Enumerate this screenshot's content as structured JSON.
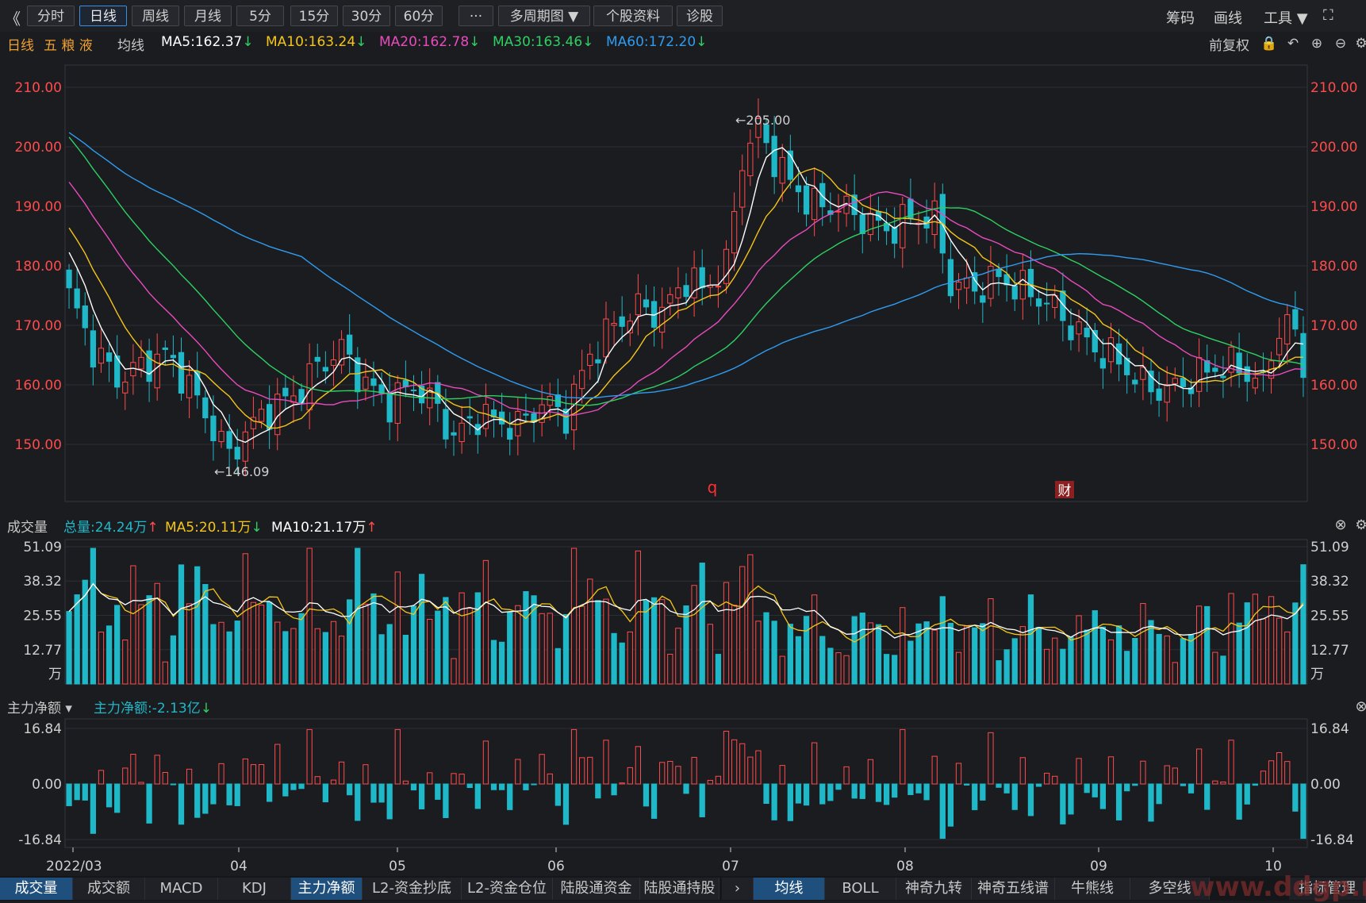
{
  "toolbar": {
    "back": "《",
    "buttons": [
      "分时",
      "日线",
      "周线",
      "月线",
      "5分",
      "15分",
      "30分",
      "60分",
      "···",
      "多周期图 ▼",
      "个股资料",
      "诊股"
    ],
    "active": 1,
    "right": [
      "筹码",
      "画线",
      "工具 ▼",
      "⛶"
    ]
  },
  "header": {
    "period": "日线",
    "stock_name": "五 粮 液",
    "ma_title": "均线",
    "ma": [
      {
        "label": "MA5:162.37",
        "arrow": "↓",
        "color": "#ffffff"
      },
      {
        "label": "MA10:163.24",
        "arrow": "↓",
        "color": "#f5c518"
      },
      {
        "label": "MA20:162.78",
        "arrow": "↓",
        "color": "#e84bbd"
      },
      {
        "label": "MA30:163.46",
        "arrow": "↓",
        "color": "#2ed062"
      },
      {
        "label": "MA60:172.20",
        "arrow": "↓",
        "color": "#2f9cf0"
      }
    ],
    "adjust": "前复权",
    "tools": [
      "lock-icon",
      "undo-icon",
      "zoom-in-icon",
      "zoom-out-icon",
      "gear-icon"
    ]
  },
  "volume_header": {
    "title": "成交量",
    "total": "总量:24.24万",
    "total_arrow": "↑",
    "ma5": "MA5:20.11万",
    "ma5_arrow": "↓",
    "ma10": "MA10:21.17万",
    "ma10_arrow": "↑"
  },
  "flow_header": {
    "title": "主力净额 ▾",
    "value": "主力净额:-2.13亿",
    "arrow": "↓"
  },
  "chart_data": [
    {
      "type": "candlestick",
      "ylim": [
        143,
        212
      ],
      "yticks": [
        "210.00",
        "200.00",
        "190.00",
        "180.00",
        "170.00",
        "160.00",
        "150.00"
      ],
      "annotations": {
        "high": "205.00",
        "low": "146.09",
        "marker_q": "q",
        "marker_cai": "财"
      },
      "x_labels": [
        "2022/03",
        "04",
        "05",
        "06",
        "07",
        "08",
        "09",
        "10"
      ],
      "colors": {
        "up": "#ff4b4b",
        "down": "#1fb8c8"
      }
    },
    {
      "type": "bar",
      "title": "成交量",
      "unit": "万",
      "ylim": [
        0,
        51.09
      ],
      "yticks": [
        "51.09",
        "38.32",
        "25.55",
        "12.77"
      ]
    },
    {
      "type": "bar",
      "title": "主力净额",
      "ylim": [
        -16.84,
        16.84
      ],
      "yticks": [
        "16.84",
        "0.00",
        "-16.84"
      ]
    }
  ],
  "bottom_tabs_left": [
    "成交量",
    "成交额",
    "MACD",
    "KDJ",
    "主力净额",
    "L2-资金抄底",
    "L2-资金仓位",
    "陆股通资金",
    "陆股通持股"
  ],
  "bottom_tabs_left_active": [
    0,
    4
  ],
  "bottom_tabs_right": [
    "均线",
    "BOLL",
    "神奇九转",
    "神奇五线谱",
    "牛熊线",
    "多空线",
    "指标管理"
  ],
  "bottom_tabs_right_active": 0,
  "watermark": "www.ddgp.net"
}
